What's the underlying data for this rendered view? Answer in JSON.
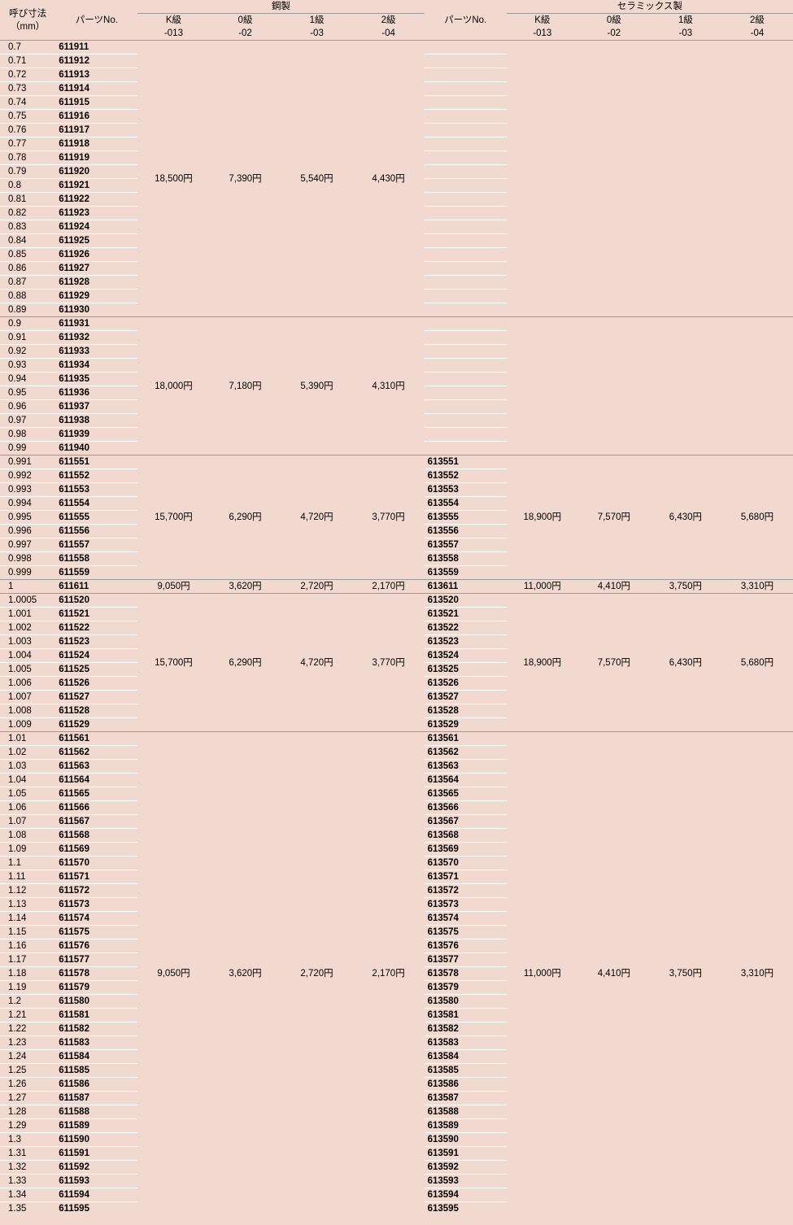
{
  "header": {
    "size_label_1": "呼び寸法",
    "size_label_2": "（mm）",
    "part_label": "パーツNo.",
    "steel_label": "鋼製",
    "ceramic_label": "セラミックス製",
    "grades": [
      {
        "name": "K級",
        "code": "-013"
      },
      {
        "name": "0級",
        "code": "-02"
      },
      {
        "name": "1級",
        "code": "-03"
      },
      {
        "name": "2級",
        "code": "-04"
      }
    ]
  },
  "groups": [
    {
      "steel_prices": [
        "18,500円",
        "7,390円",
        "5,540円",
        "4,430円"
      ],
      "ceramic_prices": [
        "",
        "",
        "",
        ""
      ],
      "rows": [
        {
          "size": "0.7",
          "steel": "611911",
          "ceramic": ""
        },
        {
          "size": "0.71",
          "steel": "611912",
          "ceramic": ""
        },
        {
          "size": "0.72",
          "steel": "611913",
          "ceramic": ""
        },
        {
          "size": "0.73",
          "steel": "611914",
          "ceramic": ""
        },
        {
          "size": "0.74",
          "steel": "611915",
          "ceramic": ""
        },
        {
          "size": "0.75",
          "steel": "611916",
          "ceramic": ""
        },
        {
          "size": "0.76",
          "steel": "611917",
          "ceramic": ""
        },
        {
          "size": "0.77",
          "steel": "611918",
          "ceramic": ""
        },
        {
          "size": "0.78",
          "steel": "611919",
          "ceramic": ""
        },
        {
          "size": "0.79",
          "steel": "611920",
          "ceramic": ""
        },
        {
          "size": "0.8",
          "steel": "611921",
          "ceramic": ""
        },
        {
          "size": "0.81",
          "steel": "611922",
          "ceramic": ""
        },
        {
          "size": "0.82",
          "steel": "611923",
          "ceramic": ""
        },
        {
          "size": "0.83",
          "steel": "611924",
          "ceramic": ""
        },
        {
          "size": "0.84",
          "steel": "611925",
          "ceramic": ""
        },
        {
          "size": "0.85",
          "steel": "611926",
          "ceramic": ""
        },
        {
          "size": "0.86",
          "steel": "611927",
          "ceramic": ""
        },
        {
          "size": "0.87",
          "steel": "611928",
          "ceramic": ""
        },
        {
          "size": "0.88",
          "steel": "611929",
          "ceramic": ""
        },
        {
          "size": "0.89",
          "steel": "611930",
          "ceramic": ""
        }
      ]
    },
    {
      "steel_prices": [
        "18,000円",
        "7,180円",
        "5,390円",
        "4,310円"
      ],
      "ceramic_prices": [
        "",
        "",
        "",
        ""
      ],
      "rows": [
        {
          "size": "0.9",
          "steel": "611931",
          "ceramic": ""
        },
        {
          "size": "0.91",
          "steel": "611932",
          "ceramic": ""
        },
        {
          "size": "0.92",
          "steel": "611933",
          "ceramic": ""
        },
        {
          "size": "0.93",
          "steel": "611934",
          "ceramic": ""
        },
        {
          "size": "0.94",
          "steel": "611935",
          "ceramic": ""
        },
        {
          "size": "0.95",
          "steel": "611936",
          "ceramic": ""
        },
        {
          "size": "0.96",
          "steel": "611937",
          "ceramic": ""
        },
        {
          "size": "0.97",
          "steel": "611938",
          "ceramic": ""
        },
        {
          "size": "0.98",
          "steel": "611939",
          "ceramic": ""
        },
        {
          "size": "0.99",
          "steel": "611940",
          "ceramic": ""
        }
      ]
    },
    {
      "steel_prices": [
        "15,700円",
        "6,290円",
        "4,720円",
        "3,770円"
      ],
      "ceramic_prices": [
        "18,900円",
        "7,570円",
        "6,430円",
        "5,680円"
      ],
      "rows": [
        {
          "size": "0.991",
          "steel": "611551",
          "ceramic": "613551"
        },
        {
          "size": "0.992",
          "steel": "611552",
          "ceramic": "613552"
        },
        {
          "size": "0.993",
          "steel": "611553",
          "ceramic": "613553"
        },
        {
          "size": "0.994",
          "steel": "611554",
          "ceramic": "613554"
        },
        {
          "size": "0.995",
          "steel": "611555",
          "ceramic": "613555"
        },
        {
          "size": "0.996",
          "steel": "611556",
          "ceramic": "613556"
        },
        {
          "size": "0.997",
          "steel": "611557",
          "ceramic": "613557"
        },
        {
          "size": "0.998",
          "steel": "611558",
          "ceramic": "613558"
        },
        {
          "size": "0.999",
          "steel": "611559",
          "ceramic": "613559"
        }
      ]
    },
    {
      "steel_prices": [
        "9,050円",
        "3,620円",
        "2,720円",
        "2,170円"
      ],
      "ceramic_prices": [
        "11,000円",
        "4,410円",
        "3,750円",
        "3,310円"
      ],
      "rows": [
        {
          "size": "1",
          "steel": "611611",
          "ceramic": "613611"
        }
      ]
    },
    {
      "steel_prices": [
        "15,700円",
        "6,290円",
        "4,720円",
        "3,770円"
      ],
      "ceramic_prices": [
        "18,900円",
        "7,570円",
        "6,430円",
        "5,680円"
      ],
      "rows": [
        {
          "size": "1.0005",
          "steel": "611520",
          "ceramic": "613520"
        },
        {
          "size": "1.001",
          "steel": "611521",
          "ceramic": "613521"
        },
        {
          "size": "1.002",
          "steel": "611522",
          "ceramic": "613522"
        },
        {
          "size": "1.003",
          "steel": "611523",
          "ceramic": "613523"
        },
        {
          "size": "1.004",
          "steel": "611524",
          "ceramic": "613524"
        },
        {
          "size": "1.005",
          "steel": "611525",
          "ceramic": "613525"
        },
        {
          "size": "1.006",
          "steel": "611526",
          "ceramic": "613526"
        },
        {
          "size": "1.007",
          "steel": "611527",
          "ceramic": "613527"
        },
        {
          "size": "1.008",
          "steel": "611528",
          "ceramic": "613528"
        },
        {
          "size": "1.009",
          "steel": "611529",
          "ceramic": "613529"
        }
      ]
    },
    {
      "steel_prices": [
        "9,050円",
        "3,620円",
        "2,720円",
        "2,170円"
      ],
      "ceramic_prices": [
        "11,000円",
        "4,410円",
        "3,750円",
        "3,310円"
      ],
      "rows": [
        {
          "size": "1.01",
          "steel": "611561",
          "ceramic": "613561"
        },
        {
          "size": "1.02",
          "steel": "611562",
          "ceramic": "613562"
        },
        {
          "size": "1.03",
          "steel": "611563",
          "ceramic": "613563"
        },
        {
          "size": "1.04",
          "steel": "611564",
          "ceramic": "613564"
        },
        {
          "size": "1.05",
          "steel": "611565",
          "ceramic": "613565"
        },
        {
          "size": "1.06",
          "steel": "611566",
          "ceramic": "613566"
        },
        {
          "size": "1.07",
          "steel": "611567",
          "ceramic": "613567"
        },
        {
          "size": "1.08",
          "steel": "611568",
          "ceramic": "613568"
        },
        {
          "size": "1.09",
          "steel": "611569",
          "ceramic": "613569"
        },
        {
          "size": "1.1",
          "steel": "611570",
          "ceramic": "613570"
        },
        {
          "size": "1.11",
          "steel": "611571",
          "ceramic": "613571"
        },
        {
          "size": "1.12",
          "steel": "611572",
          "ceramic": "613572"
        },
        {
          "size": "1.13",
          "steel": "611573",
          "ceramic": "613573"
        },
        {
          "size": "1.14",
          "steel": "611574",
          "ceramic": "613574"
        },
        {
          "size": "1.15",
          "steel": "611575",
          "ceramic": "613575"
        },
        {
          "size": "1.16",
          "steel": "611576",
          "ceramic": "613576"
        },
        {
          "size": "1.17",
          "steel": "611577",
          "ceramic": "613577"
        },
        {
          "size": "1.18",
          "steel": "611578",
          "ceramic": "613578"
        },
        {
          "size": "1.19",
          "steel": "611579",
          "ceramic": "613579"
        },
        {
          "size": "1.2",
          "steel": "611580",
          "ceramic": "613580"
        },
        {
          "size": "1.21",
          "steel": "611581",
          "ceramic": "613581"
        },
        {
          "size": "1.22",
          "steel": "611582",
          "ceramic": "613582"
        },
        {
          "size": "1.23",
          "steel": "611583",
          "ceramic": "613583"
        },
        {
          "size": "1.24",
          "steel": "611584",
          "ceramic": "613584"
        },
        {
          "size": "1.25",
          "steel": "611585",
          "ceramic": "613585"
        },
        {
          "size": "1.26",
          "steel": "611586",
          "ceramic": "613586"
        },
        {
          "size": "1.27",
          "steel": "611587",
          "ceramic": "613587"
        },
        {
          "size": "1.28",
          "steel": "611588",
          "ceramic": "613588"
        },
        {
          "size": "1.29",
          "steel": "611589",
          "ceramic": "613589"
        },
        {
          "size": "1.3",
          "steel": "611590",
          "ceramic": "613590"
        },
        {
          "size": "1.31",
          "steel": "611591",
          "ceramic": "613591"
        },
        {
          "size": "1.32",
          "steel": "611592",
          "ceramic": "613592"
        },
        {
          "size": "1.33",
          "steel": "611593",
          "ceramic": "613593"
        },
        {
          "size": "1.34",
          "steel": "611594",
          "ceramic": "613594"
        },
        {
          "size": "1.35",
          "steel": "611595",
          "ceramic": "613595"
        }
      ]
    }
  ],
  "colors": {
    "bg": "#f1d9cf",
    "stripe": "#ffffff",
    "border": "#999999"
  }
}
